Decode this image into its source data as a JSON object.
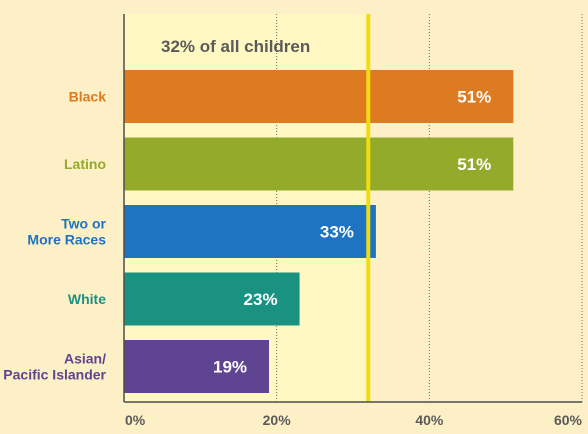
{
  "chart_data": {
    "type": "bar",
    "orientation": "horizontal",
    "categories": [
      "Black",
      "Latino",
      "Two or More Races",
      "White",
      "Asian/ Pacific Islander"
    ],
    "category_lines": [
      [
        "Black"
      ],
      [
        "Latino"
      ],
      [
        "Two or",
        "More Races"
      ],
      [
        "White"
      ],
      [
        "Asian/",
        "Pacific Islander"
      ]
    ],
    "values": [
      51,
      51,
      33,
      23,
      19
    ],
    "value_labels": [
      "51%",
      "51%",
      "33%",
      "23%",
      "19%"
    ],
    "colors": [
      "#de7a1f",
      "#94aa2a",
      "#1f74c2",
      "#1a9281",
      "#5f4491"
    ],
    "xlim": [
      0,
      60
    ],
    "xticks": [
      0,
      20,
      40,
      60
    ],
    "xtick_labels": [
      "0%",
      "20%",
      "40%",
      "60%"
    ],
    "grid": "vertical-dotted",
    "reference_line": {
      "value": 32,
      "label": "32% of all children",
      "color": "#f1dc11"
    },
    "background_color": "#fdf0c6",
    "plot_color": "#fff8c3"
  }
}
